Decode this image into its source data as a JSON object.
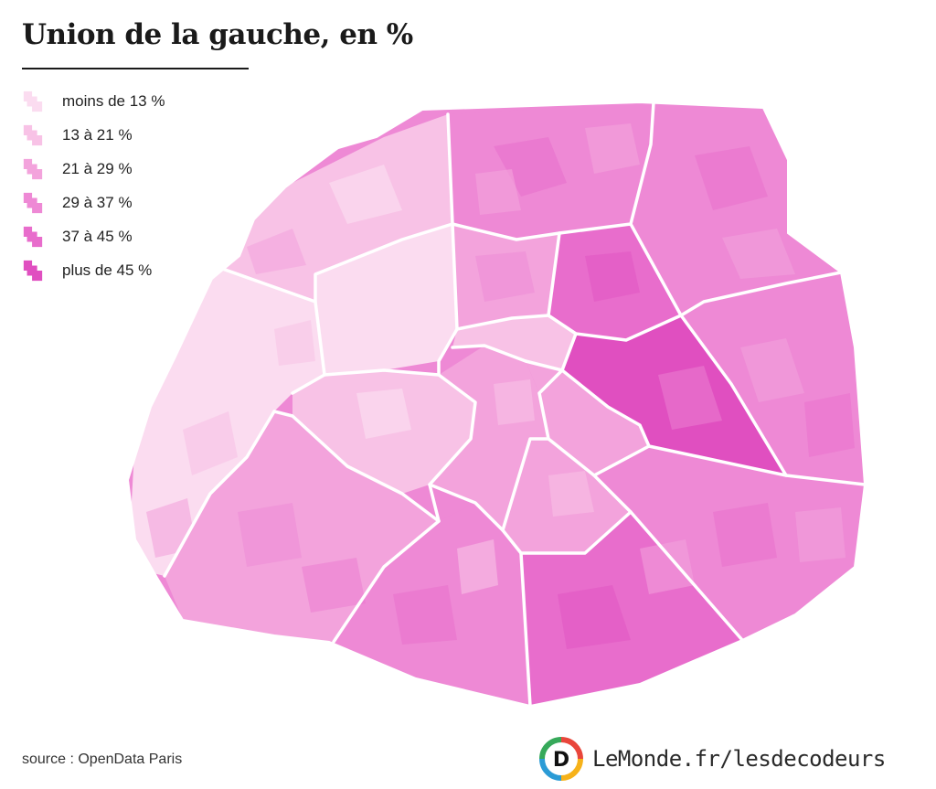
{
  "title": "Union de la gauche, en %",
  "legend": {
    "items": [
      {
        "label": "moins de 13 %",
        "color": "#fbdcf0"
      },
      {
        "label": "13 à 21 %",
        "color": "#f8c2e6"
      },
      {
        "label": "21 à 29 %",
        "color": "#f3a3dc"
      },
      {
        "label": "29 à 37 %",
        "color": "#ee89d5"
      },
      {
        "label": "37 à 45 %",
        "color": "#e86dcc"
      },
      {
        "label": "plus de 45 %",
        "color": "#e04fc0"
      }
    ]
  },
  "source": "source : OpenData Paris",
  "brand": {
    "text": "LeMonde.fr/lesdecodeurs",
    "logo_letter": "D",
    "logo_colors": [
      "#e9463b",
      "#f6b21a",
      "#2b9bd6",
      "#36a95a"
    ]
  }
}
